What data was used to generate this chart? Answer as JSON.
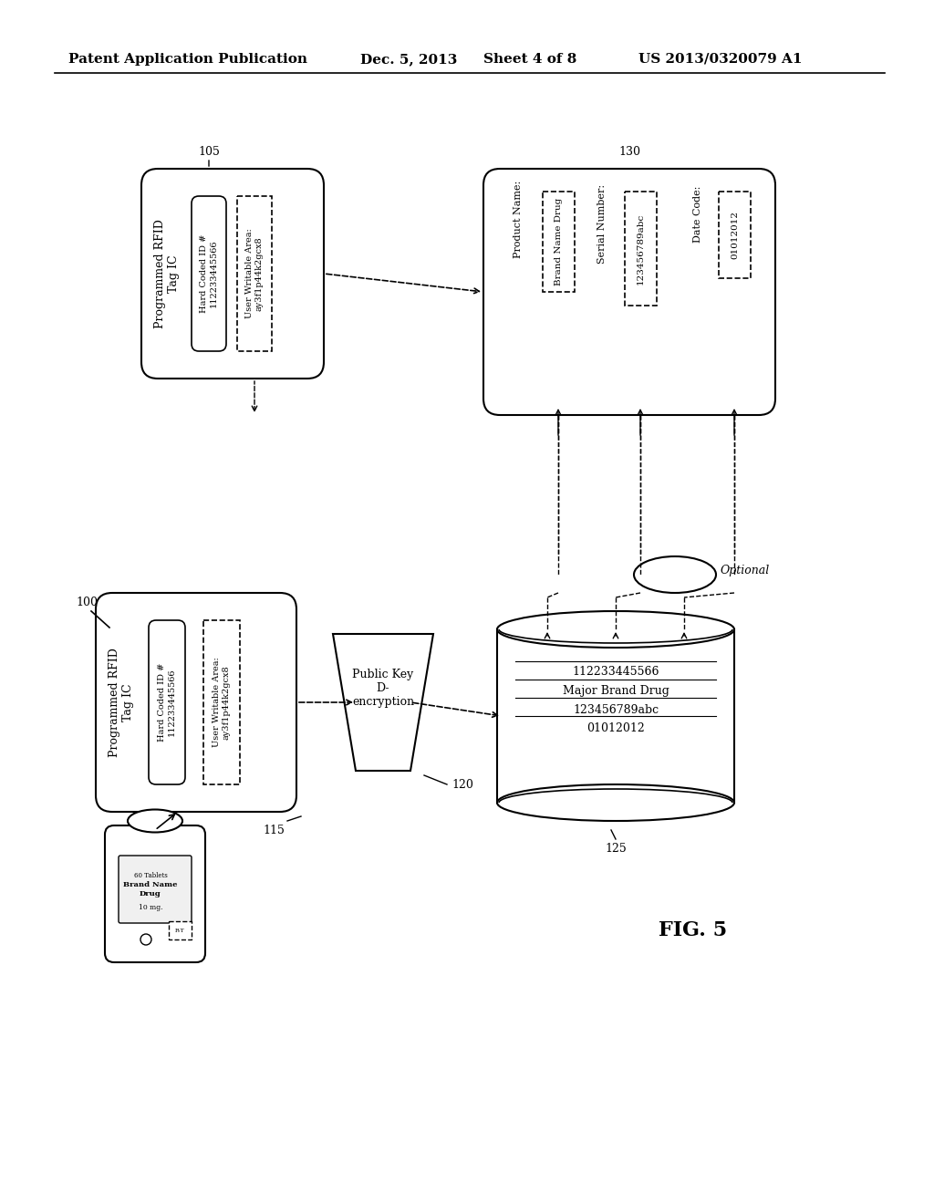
{
  "bg_color": "#ffffff",
  "text_color": "#000000",
  "header_text": "Patent Application Publication",
  "header_date": "Dec. 5, 2013",
  "header_sheet": "Sheet 4 of 8",
  "header_patent": "US 2013/0320079 A1",
  "fig_label": "FIG. 5",
  "label_100": "100",
  "label_105": "105",
  "label_115": "115",
  "label_120": "120",
  "label_125": "125",
  "label_130": "130",
  "label_optional": "Optional"
}
